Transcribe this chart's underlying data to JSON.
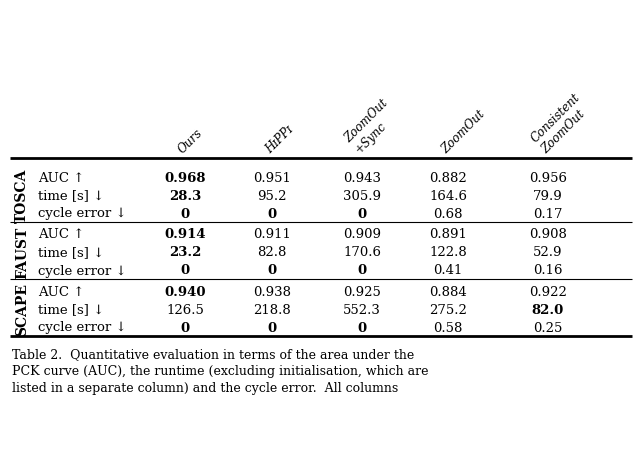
{
  "col_headers": [
    "Ours",
    "HɪPPɪ",
    "ZoomOut\n+Sync",
    "ZoomOut",
    "Consistent\nZoomOut"
  ],
  "row_groups": [
    {
      "group_label": "TOSCA",
      "rows": [
        {
          "metric": "AUC ↑",
          "values": [
            "0.968",
            "0.951",
            "0.943",
            "0.882",
            "0.956"
          ],
          "bold": [
            true,
            false,
            false,
            false,
            false
          ]
        },
        {
          "metric": "time [s] ↓",
          "values": [
            "28.3",
            "95.2",
            "305.9",
            "164.6",
            "79.9"
          ],
          "bold": [
            true,
            false,
            false,
            false,
            false
          ]
        },
        {
          "metric": "cycle error ↓",
          "values": [
            "0",
            "0",
            "0",
            "0.68",
            "0.17"
          ],
          "bold": [
            true,
            true,
            true,
            false,
            false
          ]
        }
      ]
    },
    {
      "group_label": "FAUST",
      "rows": [
        {
          "metric": "AUC ↑",
          "values": [
            "0.914",
            "0.911",
            "0.909",
            "0.891",
            "0.908"
          ],
          "bold": [
            true,
            false,
            false,
            false,
            false
          ]
        },
        {
          "metric": "time [s] ↓",
          "values": [
            "23.2",
            "82.8",
            "170.6",
            "122.8",
            "52.9"
          ],
          "bold": [
            true,
            false,
            false,
            false,
            false
          ]
        },
        {
          "metric": "cycle error ↓",
          "values": [
            "0",
            "0",
            "0",
            "0.41",
            "0.16"
          ],
          "bold": [
            true,
            true,
            true,
            false,
            false
          ]
        }
      ]
    },
    {
      "group_label": "SCAPE",
      "rows": [
        {
          "metric": "AUC ↑",
          "values": [
            "0.940",
            "0.938",
            "0.925",
            "0.884",
            "0.922"
          ],
          "bold": [
            true,
            false,
            false,
            false,
            false
          ]
        },
        {
          "metric": "time [s] ↓",
          "values": [
            "126.5",
            "218.8",
            "552.3",
            "275.2",
            "82.0"
          ],
          "bold": [
            false,
            false,
            false,
            false,
            true
          ]
        },
        {
          "metric": "cycle error ↓",
          "values": [
            "0",
            "0",
            "0",
            "0.58",
            "0.25"
          ],
          "bold": [
            true,
            true,
            true,
            false,
            false
          ]
        }
      ]
    }
  ],
  "caption_line1": "Table 2.  Quantitative evaluation in terms of the area under the",
  "caption_line2": "PCK curve (AUC), the runtime (excluding initialisation, which are",
  "caption_line3": "listed in a separate column) and the cycle error.  All columns",
  "bg_color": "#ffffff",
  "text_color": "#000000",
  "header_font_size": 8.5,
  "body_font_size": 9.5,
  "caption_font_size": 9.0,
  "group_label_font_size": 10.0
}
